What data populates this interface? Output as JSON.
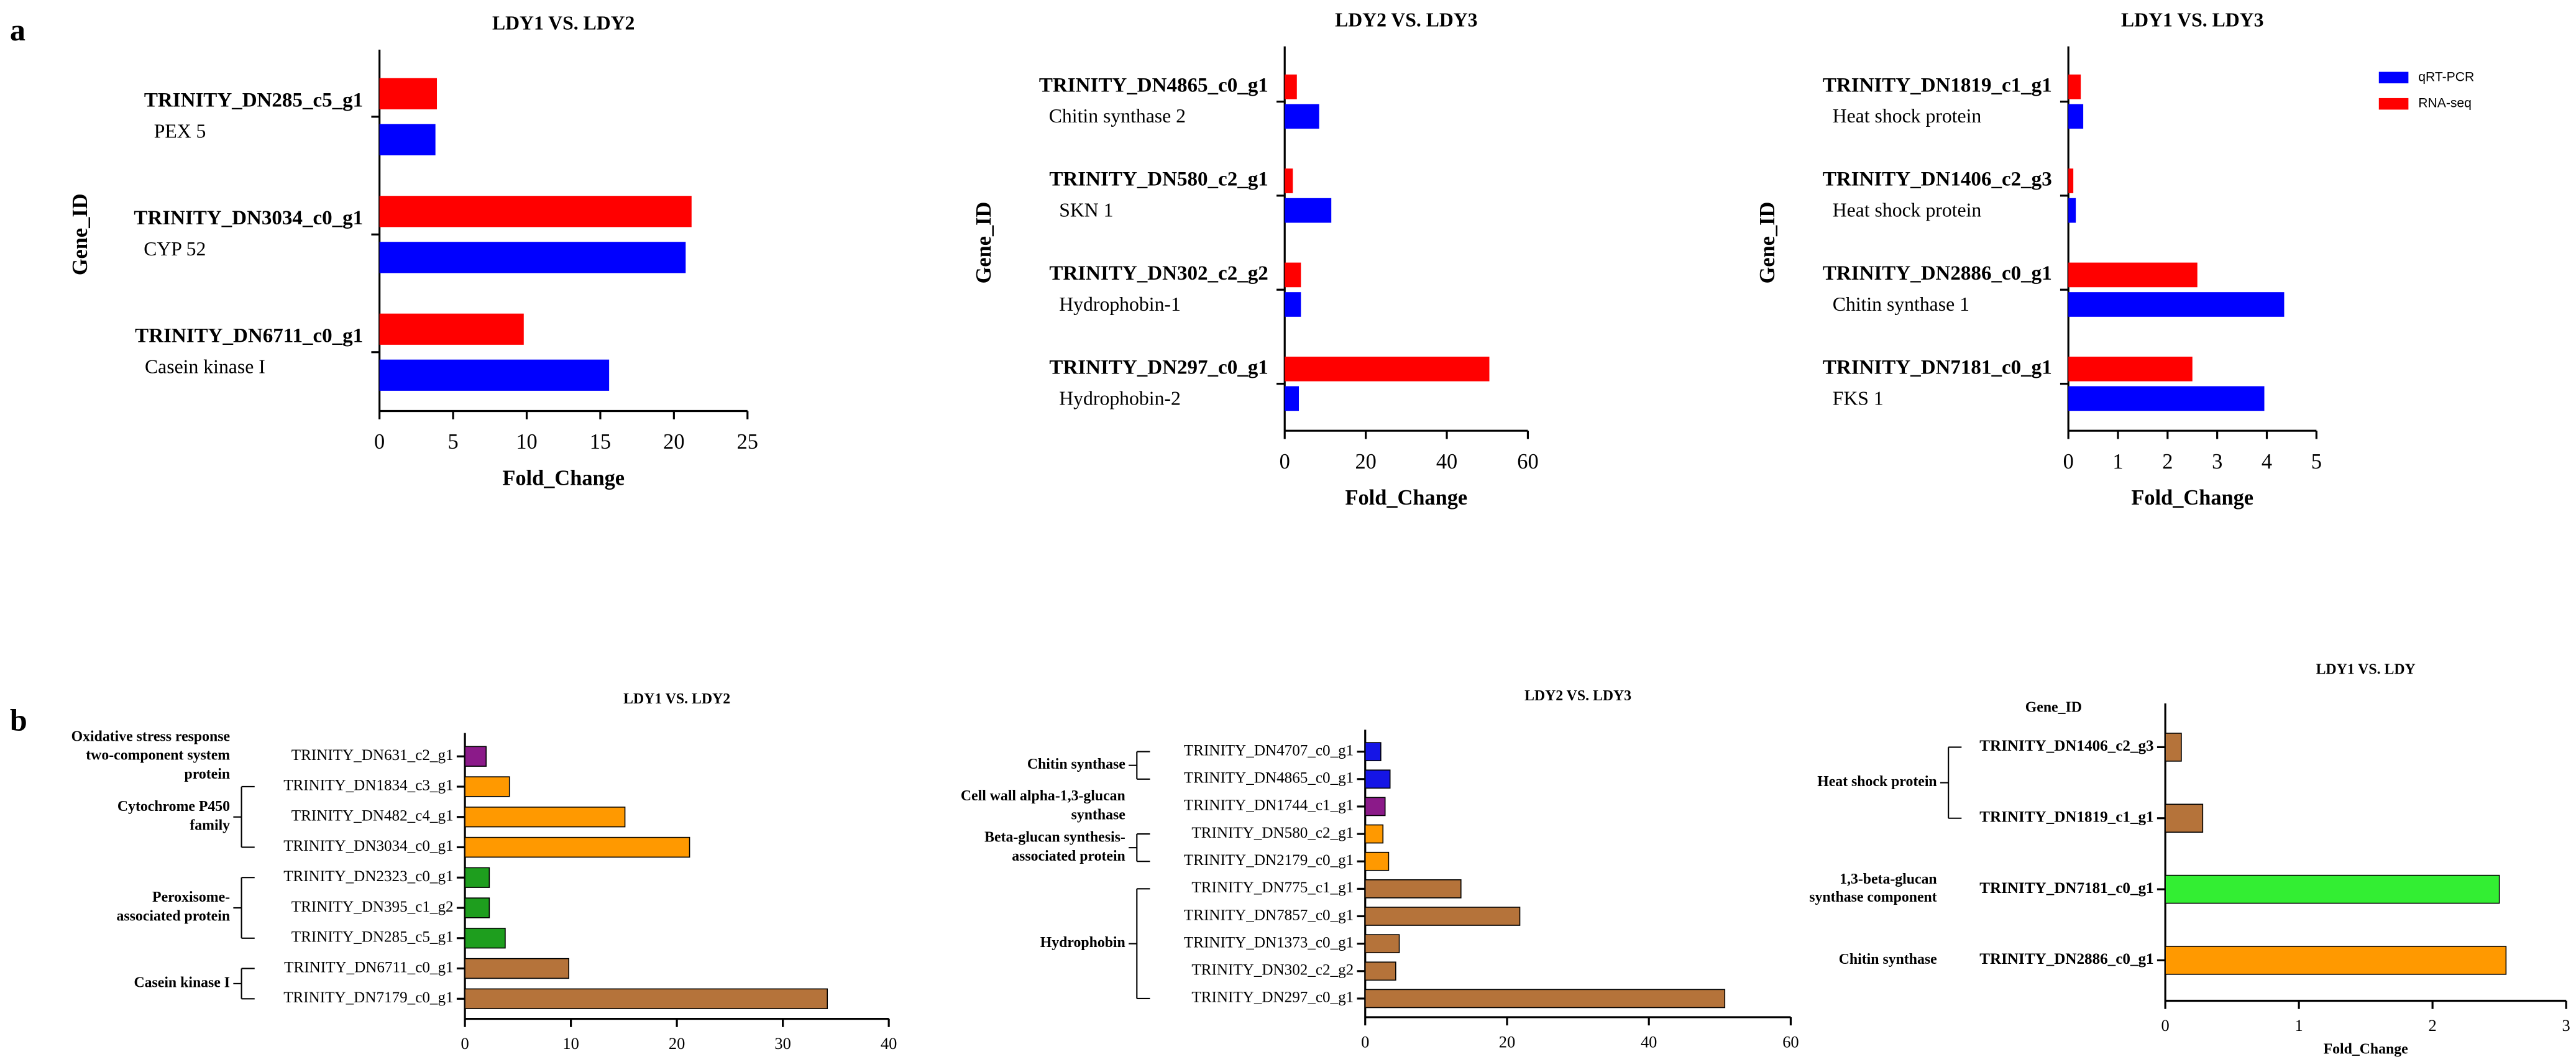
{
  "panel_labels": [
    "a",
    "b"
  ],
  "chart_data": [
    {
      "type": "bar",
      "orientation": "horizontal",
      "title": "LDY1 VS. LDY2",
      "xlabel": "Fold_Change",
      "ylabel": "Gene_ID",
      "categories": [
        "TRINITY_DN285_c5_g1",
        "TRINITY_DN3034_c0_g1",
        "TRINITY_DN6711_c0_g1"
      ],
      "gene_names": [
        "PEX 5",
        "CYP 52",
        "Casein kinase I"
      ],
      "series": [
        {
          "color": "#0000ff",
          "values": [
            3.8,
            20.8,
            15.6
          ]
        },
        {
          "color": "#ff0000",
          "values": [
            3.9,
            21.2,
            9.8
          ]
        }
      ],
      "xlim": [
        0,
        25
      ],
      "xticks": [
        0,
        5,
        10,
        15,
        20,
        25
      ]
    },
    {
      "type": "bar",
      "orientation": "horizontal",
      "title": "LDY2 VS. LDY3",
      "xlabel": "Fold_Change",
      "ylabel": "Gene_ID",
      "categories": [
        "TRINITY_DN4865_c0_g1",
        "TRINITY_DN580_c2_g1",
        "TRINITY_DN302_c2_g2",
        "TRINITY_DN297_c0_g1"
      ],
      "gene_names": [
        "Chitin synthase 2",
        "SKN 1",
        "Hydrophobin-1",
        "Hydrophobin-2"
      ],
      "series": [
        {
          "color": "#0000ff",
          "values": [
            8.5,
            11.5,
            4,
            3.5
          ]
        },
        {
          "color": "#ff0000",
          "values": [
            3,
            2,
            4,
            50.5
          ]
        }
      ],
      "xlim": [
        0,
        60
      ],
      "xticks": [
        0,
        20,
        40,
        60
      ]
    },
    {
      "type": "bar",
      "orientation": "horizontal",
      "title": "LDY1 VS. LDY3",
      "xlabel": "Fold_Change",
      "ylabel": "Gene_ID",
      "categories": [
        "TRINITY_DN1819_c1_g1",
        "TRINITY_DN1406_c2_g3",
        "TRINITY_DN2886_c0_g1",
        "TRINITY_DN7181_c0_g1"
      ],
      "gene_names": [
        "Heat shock protein",
        "Heat shock protein",
        "Chitin synthase 1",
        "FKS 1"
      ],
      "series": [
        {
          "name": "qRT-PCR",
          "color": "#0000ff",
          "values": [
            0.3,
            0.15,
            4.35,
            3.95
          ]
        },
        {
          "name": "RNA-seq",
          "color": "#ff0000",
          "values": [
            0.25,
            0.1,
            2.6,
            2.5
          ]
        }
      ],
      "xlim": [
        0,
        5
      ],
      "xticks": [
        0,
        1,
        2,
        3,
        4,
        5
      ],
      "legend": "upper right"
    },
    {
      "type": "bar",
      "orientation": "horizontal",
      "title": "LDY1 VS. LDY2",
      "categories": [
        "TRINITY_DN631_c2_g1",
        "TRINITY_DN1834_c3_g1",
        "TRINITY_DN482_c4_g1",
        "TRINITY_DN3034_c0_g1",
        "TRINITY_DN2323_c0_g1",
        "TRINITY_DN395_c1_g2",
        "TRINITY_DN285_c5_g1",
        "TRINITY_DN6711_c0_g1",
        "TRINITY_DN7179_c0_g1"
      ],
      "values": [
        2,
        4.2,
        15.1,
        21.2,
        2.3,
        2.3,
        3.8,
        9.8,
        34.2
      ],
      "colors": [
        "#8b1a89",
        "#ff9900",
        "#ff9900",
        "#ff9900",
        "#1e9e1e",
        "#1e9e1e",
        "#1e9e1e",
        "#b5733a",
        "#b5733a"
      ],
      "groups": [
        {
          "label_lines": [
            "Oxidative stress response",
            "two-component system",
            "protein"
          ],
          "start": 0,
          "end": 0
        },
        {
          "label_lines": [
            "Cytochrome P450",
            "family"
          ],
          "start": 1,
          "end": 3
        },
        {
          "label_lines": [
            "Peroxisome-",
            "associated protein"
          ],
          "start": 4,
          "end": 6
        },
        {
          "label_lines": [
            "Casein kinase I"
          ],
          "start": 7,
          "end": 8
        }
      ],
      "xlim": [
        0,
        40
      ],
      "xticks": [
        0,
        10,
        20,
        30,
        40
      ]
    },
    {
      "type": "bar",
      "orientation": "horizontal",
      "title": "LDY2 VS. LDY3",
      "categories": [
        "TRINITY_DN4707_c0_g1",
        "TRINITY_DN4865_c0_g1",
        "TRINITY_DN1744_c1_g1",
        "TRINITY_DN580_c2_g1",
        "TRINITY_DN2179_c0_g1",
        "TRINITY_DN775_c1_g1",
        "TRINITY_DN7857_c0_g1",
        "TRINITY_DN1373_c0_g1",
        "TRINITY_DN302_c2_g2",
        "TRINITY_DN297_c0_g1"
      ],
      "values": [
        2.2,
        3.5,
        2.8,
        2.5,
        3.3,
        13.5,
        21.8,
        4.8,
        4.3,
        50.7
      ],
      "colors": [
        "#1515e6",
        "#1515e6",
        "#8b1a89",
        "#ff9900",
        "#ff9900",
        "#b5733a",
        "#b5733a",
        "#b5733a",
        "#b5733a",
        "#b5733a"
      ],
      "groups": [
        {
          "label_lines": [
            "Chitin synthase"
          ],
          "start": 0,
          "end": 1
        },
        {
          "label_lines": [
            "Cell wall alpha-1,3-glucan",
            "synthase"
          ],
          "start": 2,
          "end": 2
        },
        {
          "label_lines": [
            "Beta-glucan synthesis-",
            "associated protein"
          ],
          "start": 3,
          "end": 4
        },
        {
          "label_lines": [
            "Hydrophobin"
          ],
          "start": 5,
          "end": 9
        }
      ],
      "xlim": [
        0,
        60
      ],
      "xticks": [
        0,
        20,
        40,
        60
      ]
    },
    {
      "type": "bar",
      "orientation": "horizontal",
      "title": "LDY1 VS. LDY",
      "xlabel": "Fold_Change",
      "ylabel": "Gene_ID",
      "categories": [
        "TRINITY_DN1406_c2_g3",
        "TRINITY_DN1819_c1_g1",
        "TRINITY_DN7181_c0_g1",
        "TRINITY_DN2886_c0_g1"
      ],
      "values": [
        0.12,
        0.28,
        2.5,
        2.55
      ],
      "colors": [
        "#b5733a",
        "#b5733a",
        "#33ee33",
        "#ff9900"
      ],
      "groups": [
        {
          "label_lines": [
            "Heat shock protein"
          ],
          "start": 0,
          "end": 1
        },
        {
          "label_lines": [
            "1,3-beta-glucan",
            "synthase component"
          ],
          "start": 2,
          "end": 2
        },
        {
          "label_lines": [
            "Chitin synthase"
          ],
          "start": 3,
          "end": 3
        }
      ],
      "xlim": [
        0,
        3
      ],
      "xticks": [
        0,
        1,
        2,
        3
      ]
    }
  ]
}
